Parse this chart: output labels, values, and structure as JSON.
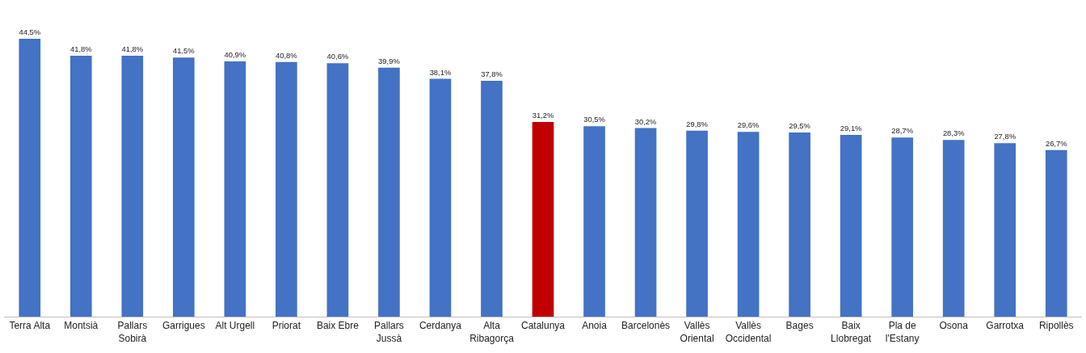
{
  "chart_data": {
    "type": "bar",
    "categories": [
      "Terra Alta",
      "Montsià",
      "Pallars Sobirà",
      "Garrigues",
      "Alt Urgell",
      "Priorat",
      "Baix Ebre",
      "Pallars Jussà",
      "Cerdanya",
      "Alta Ribagorça",
      "Catalunya",
      "Anoia",
      "Barcelonès",
      "Vallès Oriental",
      "Vallès Occidental",
      "Bages",
      "Baix Llobregat",
      "Pla de l'Estany",
      "Osona",
      "Garrotxa",
      "Ripollès"
    ],
    "values": [
      44.5,
      41.8,
      41.8,
      41.5,
      40.9,
      40.8,
      40.6,
      39.9,
      38.1,
      37.8,
      31.2,
      30.5,
      30.2,
      29.8,
      29.6,
      29.5,
      29.1,
      28.7,
      28.3,
      27.8,
      26.7
    ],
    "colors": [
      "#4472c4",
      "#4472c4",
      "#4472c4",
      "#4472c4",
      "#4472c4",
      "#4472c4",
      "#4472c4",
      "#4472c4",
      "#4472c4",
      "#4472c4",
      "#c00000",
      "#4472c4",
      "#4472c4",
      "#4472c4",
      "#4472c4",
      "#4472c4",
      "#4472c4",
      "#4472c4",
      "#4472c4",
      "#4472c4",
      "#4472c4"
    ],
    "value_labels": [
      "44,5%",
      "41,8%",
      "41,8%",
      "41,5%",
      "40,9%",
      "40,8%",
      "40,6%",
      "39,9%",
      "38,1%",
      "37,8%",
      "31,2%",
      "30,5%",
      "30,2%",
      "29,8%",
      "29,6%",
      "29,5%",
      "29,1%",
      "28,7%",
      "28,3%",
      "27,8%",
      "26,7%"
    ],
    "legend": false
  }
}
